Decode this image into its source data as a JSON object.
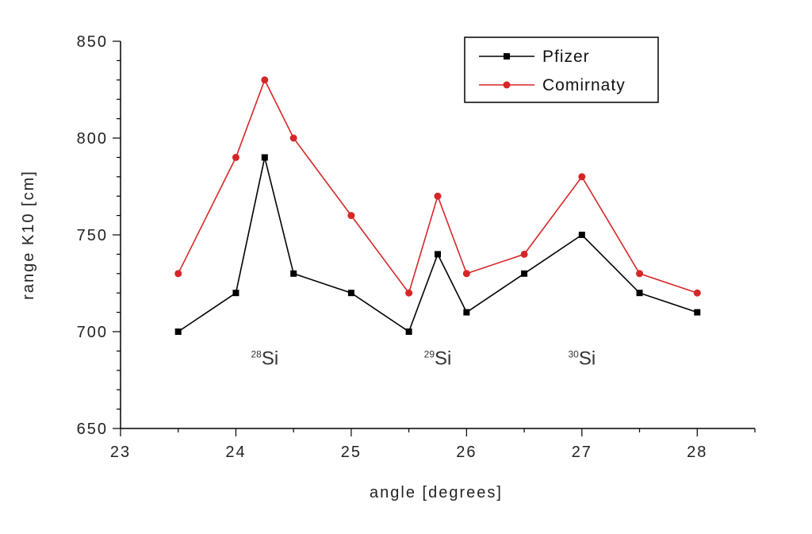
{
  "chart_data": {
    "type": "line",
    "title": "",
    "xlabel": "angle [degrees]",
    "ylabel": "range K10 [cm]",
    "xlim": [
      23,
      28.5
    ],
    "ylim": [
      650,
      850
    ],
    "xticks": [
      "23",
      "24",
      "25",
      "26",
      "27",
      "28"
    ],
    "yticks": [
      "650",
      "700",
      "750",
      "800",
      "850"
    ],
    "grid": false,
    "legend_position": "top-right",
    "series": [
      {
        "name": "Pfizer",
        "color": "#000000",
        "marker": "square",
        "x": [
          23.5,
          24,
          24.25,
          24.5,
          25,
          25.5,
          25.75,
          26,
          26.5,
          27,
          27.5,
          28
        ],
        "y": [
          700,
          720,
          790,
          730,
          720,
          700,
          740,
          710,
          730,
          750,
          720,
          710
        ]
      },
      {
        "name": "Comirnaty",
        "color": "#d62728",
        "marker": "circle",
        "x": [
          23.5,
          24,
          24.25,
          24.5,
          25,
          25.5,
          25.75,
          26,
          26.5,
          27,
          27.5,
          28
        ],
        "y": [
          730,
          790,
          830,
          800,
          760,
          720,
          770,
          730,
          740,
          780,
          730,
          720
        ]
      }
    ],
    "annotations": [
      {
        "sup": "28",
        "text": "Si",
        "x": 24.25,
        "y": 683
      },
      {
        "sup": "29",
        "text": "Si",
        "x": 25.75,
        "y": 683
      },
      {
        "sup": "30",
        "text": "Si",
        "x": 27.0,
        "y": 683
      }
    ]
  }
}
